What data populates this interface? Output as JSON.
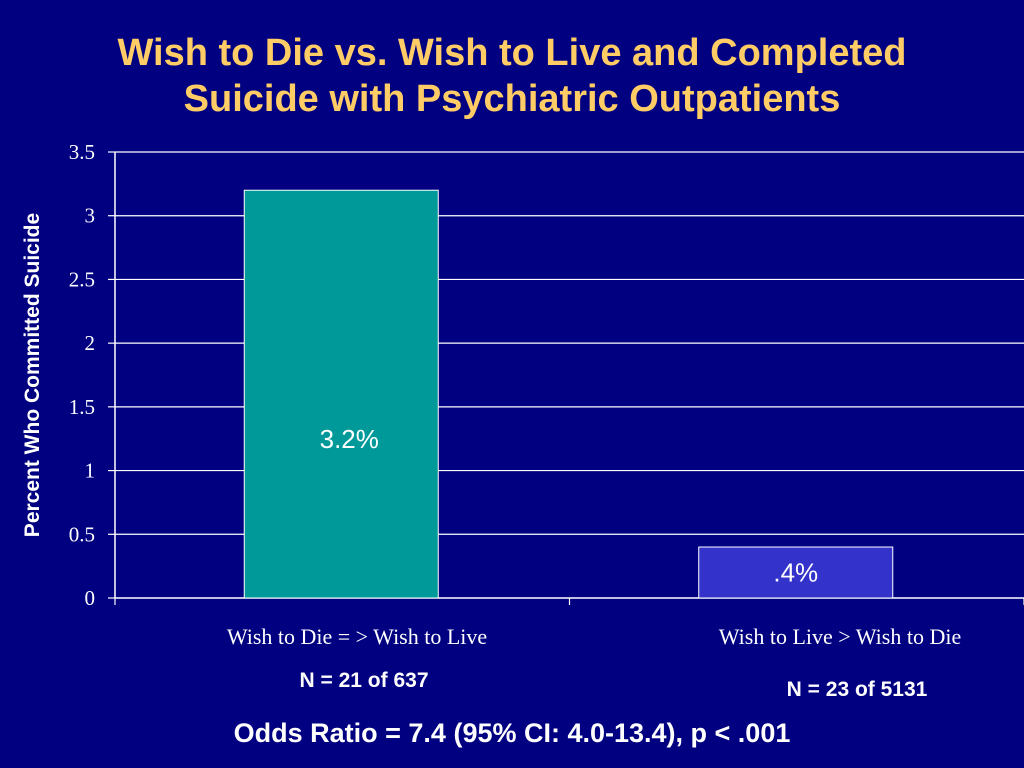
{
  "title_lines": [
    "Wish to Die vs. Wish to Live and Completed",
    "Suicide with Psychiatric Outpatients"
  ],
  "colors": {
    "background": "#000080",
    "title": "#FFCC66",
    "bar1": "#009999",
    "bar2": "#3333CC",
    "text": "#FFFFFF"
  },
  "footnotes": {
    "n1": "N = 21 of 637",
    "n2": "N = 23 of 5131",
    "odds_ratio": "Odds Ratio = 7.4 (95% CI: 4.0-13.4), p < .001"
  },
  "chart_data": {
    "type": "bar",
    "categories": [
      "Wish to Die = > Wish to Live",
      "Wish to Live > Wish to Die"
    ],
    "values": [
      3.2,
      0.4
    ],
    "data_labels": [
      "3.2%",
      ".4%"
    ],
    "ylabel": "Percent Who Committed Suicide",
    "ylim": [
      0,
      3.5
    ],
    "yticks": [
      "0",
      "0.5",
      "1",
      "1.5",
      "2",
      "2.5",
      "3",
      "3.5"
    ],
    "grid": true,
    "legend": "none"
  }
}
